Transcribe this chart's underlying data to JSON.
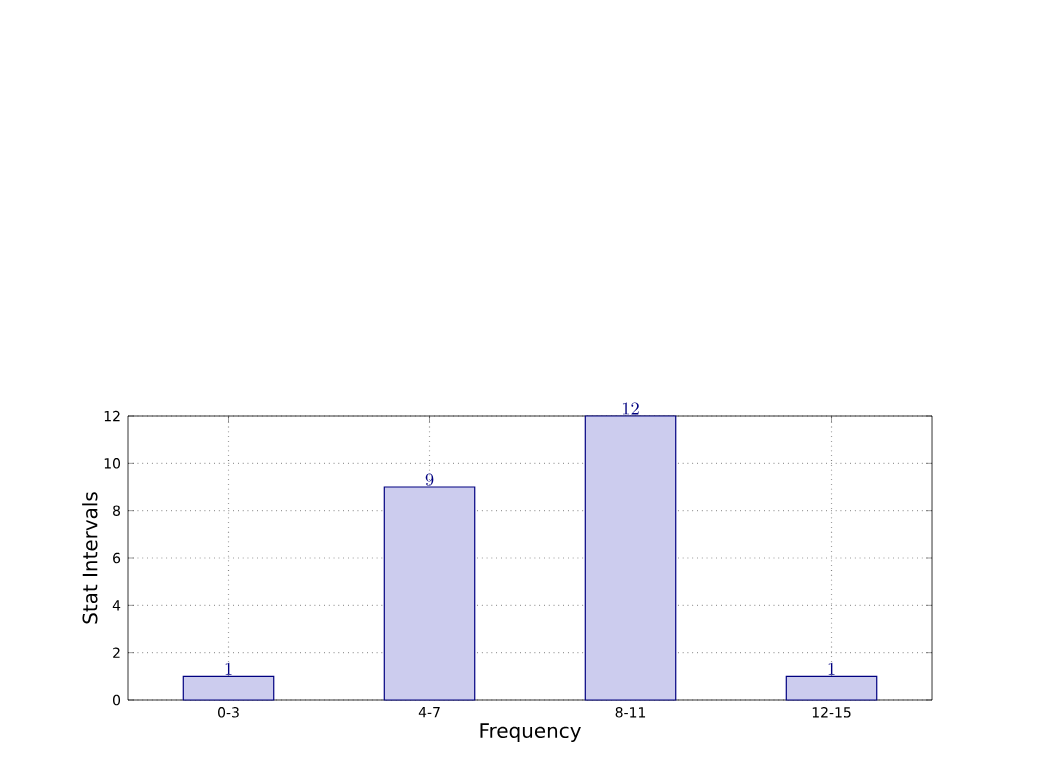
{
  "chart_data": {
    "type": "bar",
    "xlabel": "Frequency",
    "ylabel": "Stat Intervals",
    "categories": [
      "0-3",
      "4-7",
      "8-11",
      "12-15"
    ],
    "values": [
      1,
      9,
      12,
      1
    ],
    "color": "#ccccee",
    "ylim": [
      0,
      12
    ],
    "yticks": [
      0,
      2,
      4,
      6,
      8,
      10,
      12
    ],
    "grid": true,
    "data_labels": true
  }
}
